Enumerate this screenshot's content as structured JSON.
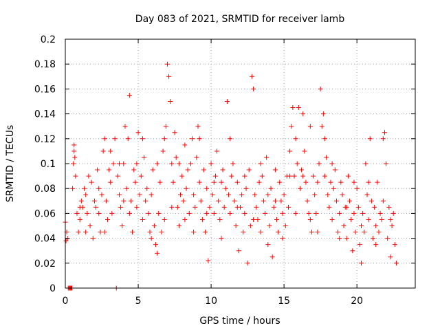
{
  "chart_data": {
    "type": "scatter",
    "title": "Day 083 of 2021, SRMTID for receiver lamb",
    "xlabel": "GPS time / hours",
    "ylabel": "SRMTID / TECUs",
    "xlim": [
      0,
      24
    ],
    "ylim": [
      0,
      0.2
    ],
    "grid": true,
    "marker": "plus",
    "color": "#ff0000",
    "x_ticks": [
      0,
      5,
      10,
      15,
      20
    ],
    "x_tick_labels": [
      "0",
      "5",
      "10",
      "15",
      "20"
    ],
    "y_ticks": [
      0,
      0.02,
      0.04,
      0.06,
      0.08,
      0.1,
      0.12,
      0.14,
      0.16,
      0.18,
      0.2
    ],
    "y_tick_labels": [
      "0",
      "0.02",
      "0.04",
      "0.06",
      "0.08",
      "0.1",
      "0.12",
      "0.14",
      "0.16",
      "0.18",
      "0.2"
    ],
    "series": [
      {
        "name": "SRMTID",
        "points": [
          [
            0.0,
            0.053
          ],
          [
            0.05,
            0.038
          ],
          [
            0.1,
            0.045
          ],
          [
            0.15,
            0.04
          ],
          [
            0.2,
            0.0
          ],
          [
            0.25,
            0.0
          ],
          [
            0.3,
            0.0
          ],
          [
            0.35,
            0.0
          ],
          [
            0.4,
            0.0
          ],
          [
            0.45,
            0.0
          ],
          [
            0.5,
            0.08
          ],
          [
            0.55,
            0.1
          ],
          [
            0.6,
            0.11
          ],
          [
            0.65,
            0.105
          ],
          [
            0.7,
            0.09
          ],
          [
            0.8,
            0.06
          ],
          [
            0.9,
            0.045
          ],
          [
            1.0,
            0.055
          ],
          [
            1.1,
            0.07
          ],
          [
            1.2,
            0.065
          ],
          [
            1.3,
            0.08
          ],
          [
            1.4,
            0.075
          ],
          [
            1.5,
            0.06
          ],
          [
            1.6,
            0.09
          ],
          [
            1.7,
            0.05
          ],
          [
            1.8,
            0.085
          ],
          [
            1.9,
            0.04
          ],
          [
            2.0,
            0.07
          ],
          [
            2.1,
            0.065
          ],
          [
            2.2,
            0.095
          ],
          [
            2.3,
            0.06
          ],
          [
            2.4,
            0.045
          ],
          [
            2.5,
            0.075
          ],
          [
            2.6,
            0.11
          ],
          [
            2.7,
            0.12
          ],
          [
            2.8,
            0.07
          ],
          [
            2.9,
            0.055
          ],
          [
            3.0,
            0.095
          ],
          [
            3.1,
            0.085
          ],
          [
            3.2,
            0.06
          ],
          [
            3.3,
            0.1
          ],
          [
            3.4,
            0.12
          ],
          [
            3.5,
            0.0
          ],
          [
            3.6,
            0.09
          ],
          [
            3.7,
            0.075
          ],
          [
            3.8,
            0.065
          ],
          [
            3.9,
            0.05
          ],
          [
            4.0,
            0.1
          ],
          [
            4.1,
            0.13
          ],
          [
            4.2,
            0.08
          ],
          [
            4.3,
            0.12
          ],
          [
            4.4,
            0.155
          ],
          [
            4.5,
            0.07
          ],
          [
            4.6,
            0.045
          ],
          [
            4.7,
            0.095
          ],
          [
            4.8,
            0.085
          ],
          [
            4.9,
            0.1
          ],
          [
            5.0,
            0.125
          ],
          [
            5.1,
            0.075
          ],
          [
            5.2,
            0.09
          ],
          [
            5.3,
            0.055
          ],
          [
            5.4,
            0.105
          ],
          [
            5.5,
            0.07
          ],
          [
            5.6,
            0.08
          ],
          [
            5.7,
            0.06
          ],
          [
            5.8,
            0.045
          ],
          [
            5.9,
            0.075
          ],
          [
            6.0,
            0.095
          ],
          [
            6.1,
            0.05
          ],
          [
            6.2,
            0.035
          ],
          [
            6.3,
            0.028
          ],
          [
            6.4,
            0.06
          ],
          [
            6.5,
            0.085
          ],
          [
            6.6,
            0.045
          ],
          [
            6.7,
            0.11
          ],
          [
            6.8,
            0.12
          ],
          [
            6.9,
            0.13
          ],
          [
            7.0,
            0.18
          ],
          [
            7.1,
            0.17
          ],
          [
            7.2,
            0.15
          ],
          [
            7.3,
            0.1
          ],
          [
            7.4,
            0.085
          ],
          [
            7.5,
            0.125
          ],
          [
            7.6,
            0.105
          ],
          [
            7.7,
            0.065
          ],
          [
            7.8,
            0.05
          ],
          [
            7.9,
            0.075
          ],
          [
            8.0,
            0.09
          ],
          [
            8.1,
            0.07
          ],
          [
            8.2,
            0.055
          ],
          [
            8.3,
            0.08
          ],
          [
            8.4,
            0.095
          ],
          [
            8.5,
            0.06
          ],
          [
            8.6,
            0.1
          ],
          [
            8.7,
            0.12
          ],
          [
            8.8,
            0.075
          ],
          [
            8.9,
            0.065
          ],
          [
            9.0,
            0.105
          ],
          [
            9.1,
            0.13
          ],
          [
            9.2,
            0.085
          ],
          [
            9.3,
            0.07
          ],
          [
            9.4,
            0.055
          ],
          [
            9.5,
            0.095
          ],
          [
            9.6,
            0.045
          ],
          [
            9.7,
            0.08
          ],
          [
            9.8,
            0.022
          ],
          [
            9.9,
            0.065
          ],
          [
            10.0,
            0.1
          ],
          [
            10.1,
            0.075
          ],
          [
            10.2,
            0.06
          ],
          [
            10.3,
            0.09
          ],
          [
            10.4,
            0.11
          ],
          [
            10.5,
            0.07
          ],
          [
            10.6,
            0.055
          ],
          [
            10.7,
            0.085
          ],
          [
            10.8,
            0.095
          ],
          [
            10.9,
            0.065
          ],
          [
            11.0,
            0.08
          ],
          [
            11.1,
            0.15
          ],
          [
            11.2,
            0.075
          ],
          [
            11.3,
            0.06
          ],
          [
            11.4,
            0.09
          ],
          [
            11.5,
            0.1
          ],
          [
            11.6,
            0.07
          ],
          [
            11.7,
            0.05
          ],
          [
            11.8,
            0.085
          ],
          [
            11.9,
            0.03
          ],
          [
            12.0,
            0.065
          ],
          [
            12.1,
            0.075
          ],
          [
            12.2,
            0.045
          ],
          [
            12.3,
            0.06
          ],
          [
            12.4,
            0.08
          ],
          [
            12.5,
            0.02
          ],
          [
            12.6,
            0.095
          ],
          [
            12.7,
            0.05
          ],
          [
            12.8,
            0.17
          ],
          [
            12.9,
            0.16
          ],
          [
            13.0,
            0.075
          ],
          [
            13.1,
            0.065
          ],
          [
            13.2,
            0.055
          ],
          [
            13.3,
            0.085
          ],
          [
            13.4,
            0.045
          ],
          [
            13.5,
            0.09
          ],
          [
            13.6,
            0.07
          ],
          [
            13.7,
            0.06
          ],
          [
            13.8,
            0.105
          ],
          [
            13.9,
            0.075
          ],
          [
            14.0,
            0.05
          ],
          [
            14.1,
            0.08
          ],
          [
            14.2,
            0.025
          ],
          [
            14.3,
            0.065
          ],
          [
            14.4,
            0.095
          ],
          [
            14.5,
            0.055
          ],
          [
            14.6,
            0.045
          ],
          [
            14.7,
            0.085
          ],
          [
            14.8,
            0.07
          ],
          [
            14.9,
            0.06
          ],
          [
            15.0,
            0.075
          ],
          [
            15.1,
            0.05
          ],
          [
            15.2,
            0.09
          ],
          [
            15.3,
            0.065
          ],
          [
            15.4,
            0.11
          ],
          [
            15.5,
            0.13
          ],
          [
            15.6,
            0.145
          ],
          [
            15.7,
            0.09
          ],
          [
            15.8,
            0.12
          ],
          [
            15.9,
            0.1
          ],
          [
            16.0,
            0.145
          ],
          [
            16.1,
            0.08
          ],
          [
            16.2,
            0.095
          ],
          [
            16.3,
            0.14
          ],
          [
            16.4,
            0.11
          ],
          [
            16.5,
            0.085
          ],
          [
            16.6,
            0.07
          ],
          [
            16.7,
            0.06
          ],
          [
            16.8,
            0.055
          ],
          [
            16.9,
            0.045
          ],
          [
            17.0,
            0.09
          ],
          [
            17.1,
            0.075
          ],
          [
            17.2,
            0.06
          ],
          [
            17.3,
            0.085
          ],
          [
            17.4,
            0.1
          ],
          [
            17.5,
            0.16
          ],
          [
            17.6,
            0.13
          ],
          [
            17.7,
            0.14
          ],
          [
            17.8,
            0.12
          ],
          [
            17.9,
            0.105
          ],
          [
            18.0,
            0.075
          ],
          [
            18.1,
            0.065
          ],
          [
            18.2,
            0.085
          ],
          [
            18.3,
            0.055
          ],
          [
            18.4,
            0.08
          ],
          [
            18.5,
            0.095
          ],
          [
            18.6,
            0.07
          ],
          [
            18.7,
            0.045
          ],
          [
            18.8,
            0.06
          ],
          [
            18.9,
            0.085
          ],
          [
            19.0,
            0.075
          ],
          [
            19.1,
            0.05
          ],
          [
            19.2,
            0.065
          ],
          [
            19.3,
            0.04
          ],
          [
            19.4,
            0.09
          ],
          [
            19.5,
            0.07
          ],
          [
            19.6,
            0.055
          ],
          [
            19.7,
            0.03
          ],
          [
            19.8,
            0.06
          ],
          [
            19.9,
            0.045
          ],
          [
            20.0,
            0.08
          ],
          [
            20.1,
            0.065
          ],
          [
            20.2,
            0.035
          ],
          [
            20.3,
            0.05
          ],
          [
            20.4,
            0.06
          ],
          [
            20.5,
            0.045
          ],
          [
            20.6,
            0.1
          ],
          [
            20.7,
            0.075
          ],
          [
            20.8,
            0.055
          ],
          [
            20.9,
            0.12
          ],
          [
            21.0,
            0.07
          ],
          [
            21.1,
            0.04
          ],
          [
            21.2,
            0.065
          ],
          [
            21.3,
            0.05
          ],
          [
            21.4,
            0.085
          ],
          [
            21.5,
            0.045
          ],
          [
            21.6,
            0.06
          ],
          [
            21.7,
            0.055
          ],
          [
            21.8,
            0.12
          ],
          [
            21.9,
            0.125
          ],
          [
            22.0,
            0.1
          ],
          [
            22.1,
            0.04
          ],
          [
            22.2,
            0.065
          ],
          [
            22.3,
            0.025
          ],
          [
            22.4,
            0.05
          ],
          [
            22.5,
            0.06
          ],
          [
            22.6,
            0.035
          ],
          [
            22.7,
            0.02
          ],
          [
            0.6,
            0.115
          ],
          [
            1.0,
            0.065
          ],
          [
            1.4,
            0.045
          ],
          [
            2.3,
            0.08
          ],
          [
            2.7,
            0.045
          ],
          [
            3.1,
            0.11
          ],
          [
            3.7,
            0.1
          ],
          [
            4.0,
            0.07
          ],
          [
            4.4,
            0.06
          ],
          [
            4.9,
            0.065
          ],
          [
            5.3,
            0.12
          ],
          [
            5.9,
            0.04
          ],
          [
            6.3,
            0.1
          ],
          [
            6.8,
            0.055
          ],
          [
            7.3,
            0.065
          ],
          [
            7.8,
            0.1
          ],
          [
            8.2,
            0.115
          ],
          [
            8.8,
            0.045
          ],
          [
            9.2,
            0.12
          ],
          [
            9.7,
            0.06
          ],
          [
            10.2,
            0.085
          ],
          [
            10.7,
            0.04
          ],
          [
            11.3,
            0.12
          ],
          [
            11.8,
            0.065
          ],
          [
            12.3,
            0.09
          ],
          [
            12.9,
            0.055
          ],
          [
            13.4,
            0.1
          ],
          [
            13.9,
            0.035
          ],
          [
            14.4,
            0.07
          ],
          [
            14.9,
            0.04
          ],
          [
            15.4,
            0.09
          ],
          [
            15.8,
            0.06
          ],
          [
            16.3,
            0.09
          ],
          [
            16.8,
            0.13
          ],
          [
            17.3,
            0.045
          ],
          [
            17.8,
            0.09
          ],
          [
            18.3,
            0.1
          ],
          [
            18.8,
            0.04
          ],
          [
            19.3,
            0.065
          ],
          [
            19.8,
            0.085
          ],
          [
            20.3,
            0.02
          ],
          [
            20.8,
            0.085
          ],
          [
            21.3,
            0.035
          ],
          [
            21.8,
            0.07
          ],
          [
            22.3,
            0.055
          ]
        ]
      }
    ]
  }
}
